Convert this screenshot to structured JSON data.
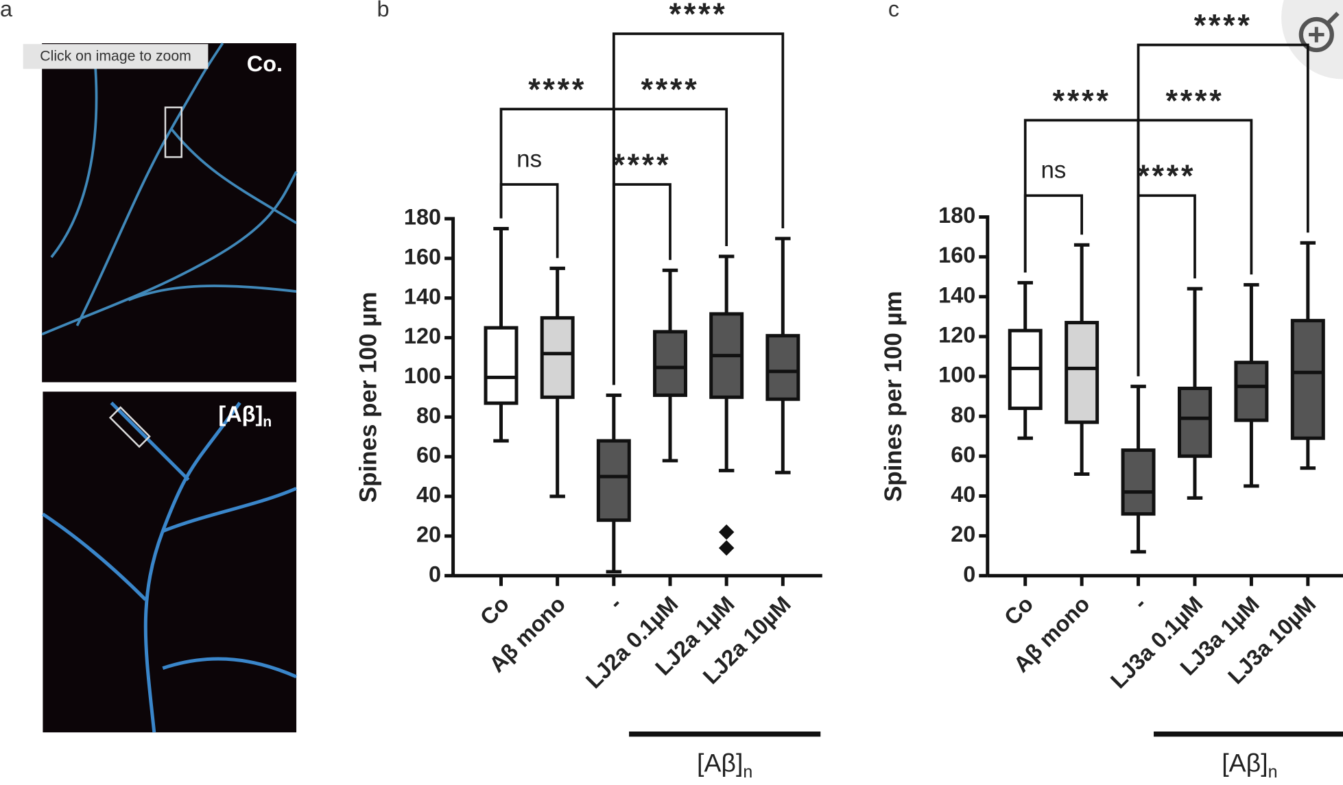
{
  "panel_labels": [
    "a",
    "b",
    "c"
  ],
  "zoom_hint": "Click on image to zoom",
  "image_labels": {
    "top": "Co.",
    "bottom": "[Aβ]",
    "bottom_sub": "n"
  },
  "chart_data": [
    {
      "type": "box",
      "y_label": "Spines per 100 µm",
      "categories": [
        "Co",
        "Aβ mono",
        "-",
        "LJ2a 0.1µM",
        "LJ2a 1µM",
        "LJ2a 10µM"
      ],
      "colors": [
        "#ffffff",
        "#d4d4d4",
        "#555555",
        "#555555",
        "#555555",
        "#555555"
      ],
      "boxes": [
        {
          "min": 68,
          "q1": 87,
          "median": 100,
          "q3": 125,
          "max": 175,
          "outliers": []
        },
        {
          "min": 40,
          "q1": 90,
          "median": 112,
          "q3": 130,
          "max": 155,
          "outliers": []
        },
        {
          "min": 2,
          "q1": 28,
          "median": 50,
          "q3": 68,
          "max": 91,
          "outliers": []
        },
        {
          "min": 58,
          "q1": 91,
          "median": 105,
          "q3": 123,
          "max": 154,
          "outliers": []
        },
        {
          "min": 53,
          "q1": 90,
          "median": 111,
          "q3": 132,
          "max": 161,
          "outliers": [
            22,
            14
          ]
        },
        {
          "min": 52,
          "q1": 89,
          "median": 103,
          "q3": 121,
          "max": 170,
          "outliers": []
        }
      ],
      "ylim": [
        0,
        180
      ],
      "yticks": [
        0,
        20,
        40,
        60,
        80,
        100,
        120,
        140,
        160,
        180
      ],
      "annotations": [
        {
          "text": "ns",
          "from": 0,
          "to": 1
        },
        {
          "text": "****",
          "from": 2,
          "to": 3
        },
        {
          "text": "****",
          "from": 0,
          "to": 2
        },
        {
          "text": "****",
          "from": 2,
          "to": 4
        },
        {
          "text": "****",
          "from": 2,
          "to": 5
        }
      ],
      "group_label": "[Aβ]",
      "group_label_sub": "n",
      "group_from": 3,
      "group_to": 5
    },
    {
      "type": "box",
      "y_label": "Spines per 100 µm",
      "categories": [
        "Co",
        "Aβ mono",
        "-",
        "LJ3a 0.1µM",
        "LJ3a 1µM",
        "LJ3a 10µM"
      ],
      "colors": [
        "#ffffff",
        "#d4d4d4",
        "#555555",
        "#555555",
        "#555555",
        "#555555"
      ],
      "boxes": [
        {
          "min": 69,
          "q1": 84,
          "median": 104,
          "q3": 123,
          "max": 147,
          "outliers": []
        },
        {
          "min": 51,
          "q1": 77,
          "median": 104,
          "q3": 127,
          "max": 166,
          "outliers": []
        },
        {
          "min": 12,
          "q1": 31,
          "median": 42,
          "q3": 63,
          "max": 95,
          "outliers": []
        },
        {
          "min": 39,
          "q1": 60,
          "median": 79,
          "q3": 94,
          "max": 144,
          "outliers": []
        },
        {
          "min": 45,
          "q1": 78,
          "median": 95,
          "q3": 107,
          "max": 146,
          "outliers": []
        },
        {
          "min": 54,
          "q1": 69,
          "median": 102,
          "q3": 128,
          "max": 167,
          "outliers": []
        }
      ],
      "ylim": [
        0,
        180
      ],
      "yticks": [
        0,
        20,
        40,
        60,
        80,
        100,
        120,
        140,
        160,
        180
      ],
      "annotations": [
        {
          "text": "ns",
          "from": 0,
          "to": 1
        },
        {
          "text": "****",
          "from": 2,
          "to": 3
        },
        {
          "text": "****",
          "from": 0,
          "to": 2
        },
        {
          "text": "****",
          "from": 2,
          "to": 4
        },
        {
          "text": "****",
          "from": 2,
          "to": 5
        }
      ],
      "group_label": "[Aβ]",
      "group_label_sub": "n",
      "group_from": 3,
      "group_to": 5
    }
  ]
}
